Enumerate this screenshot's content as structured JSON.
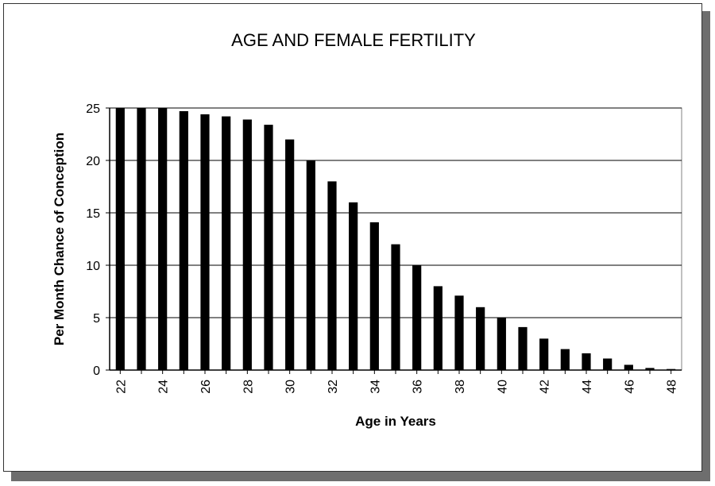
{
  "chart_data": {
    "type": "bar",
    "title": "AGE AND FEMALE FERTILITY",
    "xlabel": "Age in Years",
    "ylabel": "Per Month Chance of Conception",
    "categories": [
      "22",
      "23",
      "24",
      "25",
      "26",
      "27",
      "28",
      "29",
      "30",
      "31",
      "32",
      "33",
      "34",
      "35",
      "36",
      "37",
      "38",
      "39",
      "40",
      "41",
      "42",
      "43",
      "44",
      "45",
      "46",
      "47",
      "48"
    ],
    "x_tick_labels": [
      "22",
      "24",
      "26",
      "28",
      "30",
      "32",
      "34",
      "36",
      "38",
      "40",
      "42",
      "44",
      "46",
      "48"
    ],
    "values": [
      25,
      25,
      25,
      24.7,
      24.4,
      24.2,
      23.9,
      23.4,
      22,
      20,
      18,
      16,
      14.1,
      12,
      10,
      8,
      7.1,
      6,
      5,
      4.1,
      3,
      2,
      1.6,
      1.1,
      0.5,
      0.2,
      0.1
    ],
    "ylim": [
      0,
      25
    ],
    "y_ticks": [
      0,
      5,
      10,
      15,
      20,
      25
    ],
    "grid": true,
    "bar_color": "#000000"
  }
}
